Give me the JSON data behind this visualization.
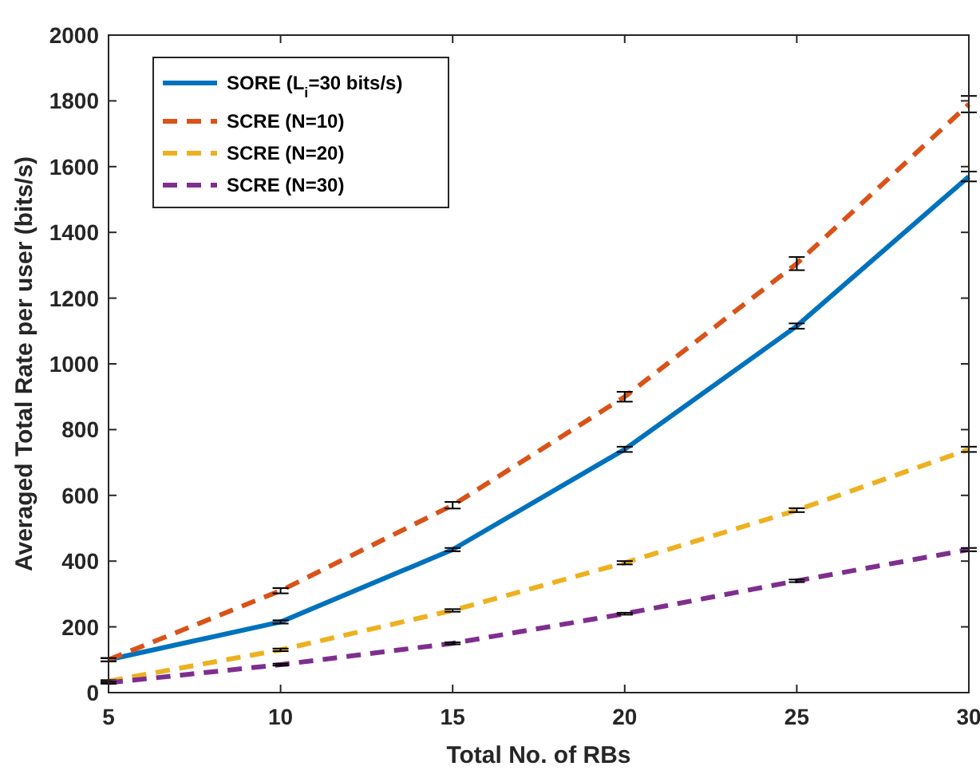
{
  "chart_data": {
    "type": "line",
    "xlabel": "Total No. of RBs",
    "ylabel": "Averaged Total Rate per user (bits/s)",
    "x": [
      5,
      10,
      15,
      20,
      25,
      30
    ],
    "xlim": [
      5,
      30
    ],
    "xticks": [
      5,
      10,
      15,
      20,
      25,
      30
    ],
    "ylim": [
      0,
      2000
    ],
    "yticks": [
      0,
      200,
      400,
      600,
      800,
      1000,
      1200,
      1400,
      1600,
      1800,
      2000
    ],
    "grid": false,
    "legend": "top left",
    "marker": "none",
    "series": [
      {
        "name": "SORE (L$_{i}$=30 bits/s)",
        "color": "#0072bd",
        "line_style": "solid",
        "values": [
          100,
          215,
          435,
          740,
          1115,
          1570
        ],
        "errors": [
          5,
          5,
          5,
          8,
          8,
          15
        ]
      },
      {
        "name": "SCRE (N=10)",
        "color": "#d95319",
        "line_style": "dashed",
        "values": [
          100,
          310,
          570,
          900,
          1305,
          1790
        ],
        "errors": [
          5,
          8,
          10,
          15,
          20,
          25
        ]
      },
      {
        "name": "SCRE (N=20)",
        "color": "#edb120",
        "line_style": "dashed",
        "values": [
          35,
          130,
          250,
          395,
          555,
          740
        ],
        "errors": [
          3,
          4,
          4,
          5,
          6,
          8
        ]
      },
      {
        "name": "SCRE (N=30)",
        "color": "#7e2f8e",
        "line_style": "dashed",
        "values": [
          30,
          85,
          150,
          240,
          340,
          435
        ],
        "errors": [
          3,
          3,
          3,
          3,
          4,
          5
        ]
      }
    ]
  }
}
